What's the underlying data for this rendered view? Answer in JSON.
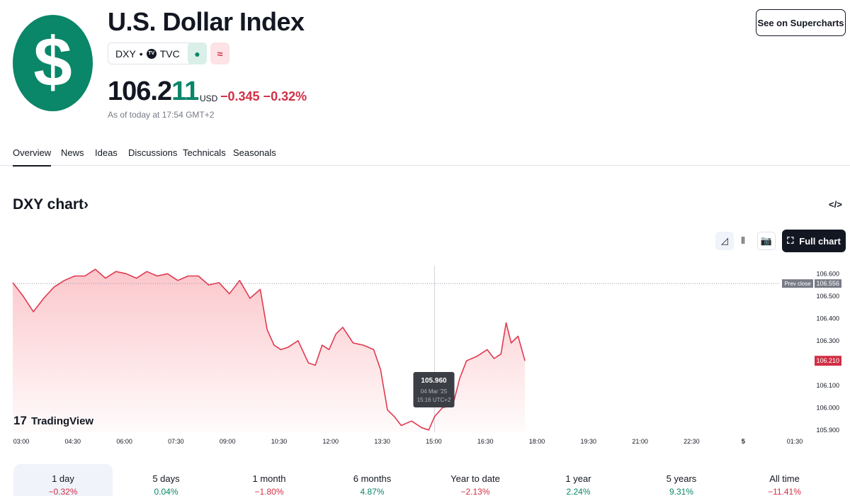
{
  "header": {
    "logo_symbol": "$",
    "title": "U.S. Dollar Index",
    "symbol": "DXY",
    "separator": "•",
    "exchange_icon": "TV",
    "exchange": "TVC",
    "badge_market_icon": "●",
    "badge_trend_icon": "≈",
    "price_main": "106.2",
    "price_tail": "11",
    "currency": "USD",
    "change": "−0.345 −0.32%",
    "as_of": "As of today at 17:54 GMT+2",
    "supercharts_button": "See on Supercharts"
  },
  "tabs": [
    "Overview",
    "News",
    "Ideas",
    "Discussions",
    "Technicals",
    "Seasonals"
  ],
  "chart_section": {
    "title": "DXY chart",
    "title_arrow": "›",
    "embed_icon": "</>",
    "full_chart_label": "Full chart",
    "full_chart_icon": "⛶",
    "camera_icon": "📷",
    "area_icon": "◿",
    "candles_icon": "⫴"
  },
  "colors": {
    "brand_green": "#0a8668",
    "negative": "#d12f45",
    "line": "#e03a4f"
  },
  "chart_data": {
    "type": "area",
    "watermark": "TradingView",
    "x_ticks": [
      "03:00",
      "04:30",
      "06:00",
      "07:30",
      "09:00",
      "10:30",
      "12:00",
      "13:30",
      "15:00",
      "16:30",
      "18:00",
      "19:30",
      "21:00",
      "22:30",
      "5",
      "01:30"
    ],
    "y_ticks": [
      "106.600",
      "106.500",
      "106.400",
      "106.300",
      "106.100",
      "106.000",
      "105.900"
    ],
    "y_tick_values": [
      106.6,
      106.5,
      106.4,
      106.3,
      106.1,
      106.0,
      105.9
    ],
    "ylim": [
      105.89,
      106.62
    ],
    "prev_close": {
      "label": "Prev close",
      "value": 106.556,
      "text": "106.556"
    },
    "last": {
      "value": 106.21,
      "text": "106.210"
    },
    "tooltip": {
      "value": "105.960",
      "date": "04 Mar '25",
      "time": "15:16 UTC+2",
      "x": 15.27,
      "y": 105.96
    },
    "series": [
      {
        "x": [
          3.0,
          3.3,
          3.6,
          3.9,
          4.2,
          4.5,
          4.8,
          5.1,
          5.4,
          5.7,
          6.0,
          6.3,
          6.6,
          6.9,
          7.2,
          7.5,
          7.8,
          8.1,
          8.4,
          8.7,
          9.0,
          9.3,
          9.6,
          9.9,
          10.2,
          10.4,
          10.6,
          10.8,
          11.0,
          11.3,
          11.6,
          11.8,
          12.0,
          12.2,
          12.4,
          12.6,
          12.9,
          13.2,
          13.5,
          13.7,
          13.9,
          14.1,
          14.3,
          14.6,
          14.9,
          15.1,
          15.27,
          15.5,
          15.8,
          16.0,
          16.2,
          16.5,
          16.8,
          17.0,
          17.2,
          17.35,
          17.5,
          17.7,
          17.9
        ],
        "values": [
          106.56,
          106.5,
          106.43,
          106.49,
          106.54,
          106.57,
          106.59,
          106.59,
          106.62,
          106.58,
          106.61,
          106.6,
          106.58,
          106.61,
          106.59,
          106.6,
          106.57,
          106.59,
          106.59,
          106.55,
          106.56,
          106.51,
          106.57,
          106.49,
          106.53,
          106.35,
          106.28,
          106.26,
          106.27,
          106.3,
          106.2,
          106.19,
          106.28,
          106.26,
          106.33,
          106.36,
          106.29,
          106.28,
          106.26,
          106.17,
          105.99,
          105.96,
          105.92,
          105.94,
          105.91,
          105.9,
          105.96,
          106.0,
          106.01,
          106.13,
          106.21,
          106.23,
          106.26,
          106.22,
          106.24,
          106.38,
          106.29,
          106.32,
          106.21
        ]
      }
    ]
  },
  "periods": [
    {
      "label": "1 day",
      "value": "−0.32%",
      "dir": "neg"
    },
    {
      "label": "5 days",
      "value": "0.04%",
      "dir": "pos"
    },
    {
      "label": "1 month",
      "value": "−1.80%",
      "dir": "neg"
    },
    {
      "label": "6 months",
      "value": "4.87%",
      "dir": "pos"
    },
    {
      "label": "Year to date",
      "value": "−2.13%",
      "dir": "neg"
    },
    {
      "label": "1 year",
      "value": "2.24%",
      "dir": "pos"
    },
    {
      "label": "5 years",
      "value": "9.31%",
      "dir": "pos"
    },
    {
      "label": "All time",
      "value": "−11.41%",
      "dir": "neg"
    }
  ]
}
